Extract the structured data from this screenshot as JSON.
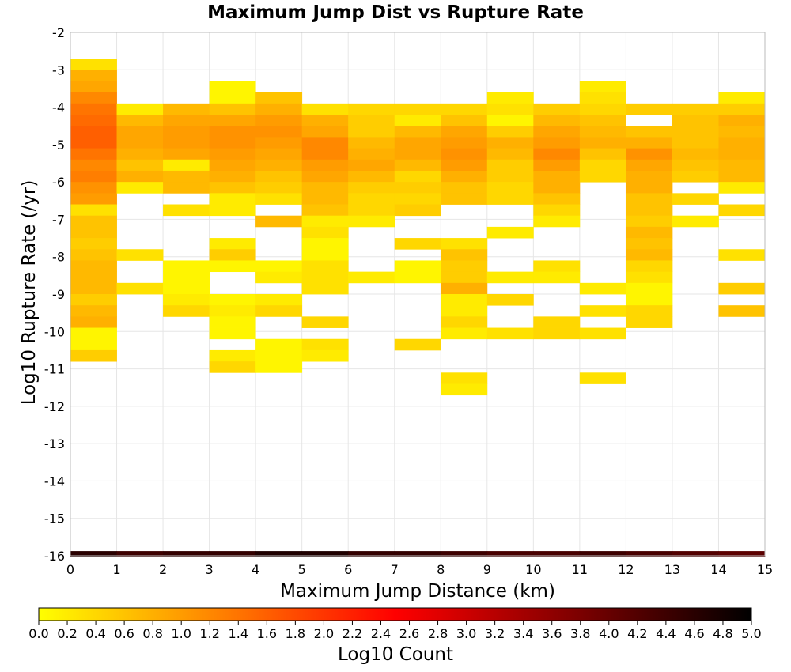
{
  "chart_data": {
    "type": "heatmap",
    "title": "Maximum Jump Dist vs Rupture Rate",
    "xlabel": "Maximum Jump Distance (km)",
    "ylabel": "Log10 Rupture Rate (/yr)",
    "xlim": [
      0,
      15
    ],
    "ylim": [
      -16,
      -2
    ],
    "x_ticks": [
      "0",
      "1",
      "2",
      "3",
      "4",
      "5",
      "6",
      "7",
      "8",
      "9",
      "10",
      "11",
      "12",
      "13",
      "14",
      "15"
    ],
    "y_ticks": [
      "-2",
      "-3",
      "-4",
      "-5",
      "-6",
      "-7",
      "-8",
      "-9",
      "-10",
      "-11",
      "-12",
      "-13",
      "-14",
      "-15",
      "-16"
    ],
    "x_bin_width": 1,
    "y_bin_height": 0.3,
    "grid": true,
    "colorbar": {
      "label": "Log10 Count",
      "min": 0,
      "max": 5,
      "ticks": [
        "0.0",
        "0.2",
        "0.4",
        "0.6",
        "0.8",
        "1.0",
        "1.2",
        "1.4",
        "1.6",
        "1.8",
        "2.0",
        "2.2",
        "2.4",
        "2.6",
        "2.8",
        "3.0",
        "3.2",
        "3.4",
        "3.6",
        "3.8",
        "4.0",
        "4.2",
        "4.4",
        "4.6",
        "4.8",
        "5.0"
      ],
      "colors": [
        "#ffff00",
        "#ff6a00",
        "#ff0000",
        "#800000",
        "#000000"
      ]
    },
    "columns": [
      {
        "x": 0.5,
        "cells": [
          [
            -2.85,
            0.3
          ],
          [
            -3.15,
            0.8
          ],
          [
            -3.45,
            0.9
          ],
          [
            -3.75,
            1.2
          ],
          [
            -4.05,
            1.4
          ],
          [
            -4.35,
            1.5
          ],
          [
            -4.65,
            1.6
          ],
          [
            -4.95,
            1.6
          ],
          [
            -5.25,
            1.4
          ],
          [
            -5.55,
            1.2
          ],
          [
            -5.85,
            1.3
          ],
          [
            -6.15,
            1.1
          ],
          [
            -6.45,
            1.0
          ],
          [
            -6.75,
            0.3
          ],
          [
            -7.05,
            0.6
          ],
          [
            -7.35,
            0.6
          ],
          [
            -7.65,
            0.5
          ],
          [
            -7.95,
            0.6
          ],
          [
            -8.25,
            0.7
          ],
          [
            -8.55,
            0.7
          ],
          [
            -8.85,
            0.7
          ],
          [
            -9.15,
            0.5
          ],
          [
            -9.45,
            0.7
          ],
          [
            -9.75,
            0.8
          ],
          [
            -10.05,
            0.1
          ],
          [
            -10.35,
            0.1
          ],
          [
            -10.65,
            0.5
          ]
        ]
      },
      {
        "x": 1.5,
        "cells": [
          [
            -4.05,
            0.2
          ],
          [
            -4.35,
            0.7
          ],
          [
            -4.65,
            0.9
          ],
          [
            -4.95,
            0.9
          ],
          [
            -5.25,
            0.8
          ],
          [
            -5.55,
            0.6
          ],
          [
            -5.85,
            0.8
          ],
          [
            -6.15,
            0.2
          ],
          [
            -7.95,
            0.3
          ],
          [
            -8.85,
            0.3
          ]
        ]
      },
      {
        "x": 2.5,
        "cells": [
          [
            -4.05,
            0.7
          ],
          [
            -4.35,
            0.9
          ],
          [
            -4.65,
            1.0
          ],
          [
            -4.95,
            1.0
          ],
          [
            -5.25,
            0.9
          ],
          [
            -5.55,
            0.2
          ],
          [
            -5.85,
            0.7
          ],
          [
            -6.15,
            0.7
          ],
          [
            -6.75,
            0.3
          ],
          [
            -8.25,
            0.1
          ],
          [
            -8.55,
            0.1
          ],
          [
            -8.85,
            0.1
          ],
          [
            -9.15,
            0.2
          ],
          [
            -9.45,
            0.4
          ]
        ]
      },
      {
        "x": 3.5,
        "cells": [
          [
            -3.45,
            0.1
          ],
          [
            -3.75,
            0.1
          ],
          [
            -4.05,
            0.6
          ],
          [
            -4.35,
            0.9
          ],
          [
            -4.65,
            1.1
          ],
          [
            -4.95,
            1.1
          ],
          [
            -5.25,
            1.0
          ],
          [
            -5.55,
            0.9
          ],
          [
            -5.85,
            0.8
          ],
          [
            -6.15,
            0.6
          ],
          [
            -6.45,
            0.2
          ],
          [
            -6.75,
            0.2
          ],
          [
            -7.65,
            0.2
          ],
          [
            -7.95,
            0.5
          ],
          [
            -8.25,
            0.1
          ],
          [
            -9.15,
            0.1
          ],
          [
            -9.45,
            0.2
          ],
          [
            -9.75,
            0.1
          ],
          [
            -10.05,
            0.1
          ],
          [
            -10.65,
            0.2
          ],
          [
            -10.95,
            0.4
          ]
        ]
      },
      {
        "x": 4.5,
        "cells": [
          [
            -3.75,
            0.6
          ],
          [
            -4.05,
            0.8
          ],
          [
            -4.35,
            1.0
          ],
          [
            -4.65,
            1.1
          ],
          [
            -4.95,
            1.0
          ],
          [
            -5.25,
            0.9
          ],
          [
            -5.55,
            0.8
          ],
          [
            -5.85,
            0.6
          ],
          [
            -6.15,
            0.5
          ],
          [
            -6.45,
            0.3
          ],
          [
            -7.05,
            0.7
          ],
          [
            -8.25,
            0.1
          ],
          [
            -8.55,
            0.2
          ],
          [
            -9.15,
            0.2
          ],
          [
            -9.45,
            0.4
          ],
          [
            -10.35,
            0.1
          ],
          [
            -10.65,
            0.1
          ],
          [
            -10.95,
            0.1
          ]
        ]
      },
      {
        "x": 5.5,
        "cells": [
          [
            -4.05,
            0.3
          ],
          [
            -4.35,
            0.8
          ],
          [
            -4.65,
            0.9
          ],
          [
            -4.95,
            1.2
          ],
          [
            -5.25,
            1.2
          ],
          [
            -5.55,
            1.0
          ],
          [
            -5.85,
            0.9
          ],
          [
            -6.15,
            0.7
          ],
          [
            -6.45,
            0.7
          ],
          [
            -6.75,
            0.6
          ],
          [
            -7.05,
            0.2
          ],
          [
            -7.35,
            0.3
          ],
          [
            -7.65,
            0.1
          ],
          [
            -7.95,
            0.1
          ],
          [
            -8.25,
            0.3
          ],
          [
            -8.55,
            0.3
          ],
          [
            -8.85,
            0.3
          ],
          [
            -9.75,
            0.4
          ],
          [
            -10.35,
            0.3
          ],
          [
            -10.65,
            0.2
          ]
        ]
      },
      {
        "x": 6.5,
        "cells": [
          [
            -4.05,
            0.4
          ],
          [
            -4.35,
            0.5
          ],
          [
            -4.65,
            0.5
          ],
          [
            -4.95,
            0.7
          ],
          [
            -5.25,
            0.8
          ],
          [
            -5.55,
            0.9
          ],
          [
            -5.85,
            0.7
          ],
          [
            -6.15,
            0.5
          ],
          [
            -6.45,
            0.4
          ],
          [
            -6.75,
            0.4
          ],
          [
            -7.05,
            0.2
          ],
          [
            -8.55,
            0.2
          ]
        ]
      },
      {
        "x": 7.5,
        "cells": [
          [
            -4.05,
            0.4
          ],
          [
            -4.35,
            0.2
          ],
          [
            -4.65,
            0.7
          ],
          [
            -4.95,
            0.9
          ],
          [
            -5.25,
            0.9
          ],
          [
            -5.55,
            0.7
          ],
          [
            -5.85,
            0.4
          ],
          [
            -6.15,
            0.5
          ],
          [
            -6.45,
            0.4
          ],
          [
            -6.75,
            0.5
          ],
          [
            -7.65,
            0.4
          ],
          [
            -8.25,
            0.1
          ],
          [
            -8.55,
            0.1
          ],
          [
            -10.35,
            0.4
          ]
        ]
      },
      {
        "x": 8.5,
        "cells": [
          [
            -4.05,
            0.4
          ],
          [
            -4.35,
            0.6
          ],
          [
            -4.65,
            0.9
          ],
          [
            -4.95,
            1.0
          ],
          [
            -5.25,
            1.1
          ],
          [
            -5.55,
            1.0
          ],
          [
            -5.85,
            0.8
          ],
          [
            -6.15,
            0.6
          ],
          [
            -6.45,
            0.6
          ],
          [
            -7.65,
            0.3
          ],
          [
            -7.95,
            0.6
          ],
          [
            -8.25,
            0.5
          ],
          [
            -8.55,
            0.5
          ],
          [
            -8.85,
            0.8
          ],
          [
            -9.15,
            0.2
          ],
          [
            -9.45,
            0.2
          ],
          [
            -9.75,
            0.4
          ],
          [
            -10.05,
            0.2
          ],
          [
            -11.25,
            0.3
          ],
          [
            -11.55,
            0.2
          ]
        ]
      },
      {
        "x": 9.5,
        "cells": [
          [
            -3.75,
            0.2
          ],
          [
            -4.05,
            0.3
          ],
          [
            -4.35,
            0.1
          ],
          [
            -4.65,
            0.5
          ],
          [
            -4.95,
            0.8
          ],
          [
            -5.25,
            0.7
          ],
          [
            -5.55,
            0.5
          ],
          [
            -5.85,
            0.5
          ],
          [
            -6.15,
            0.4
          ],
          [
            -6.45,
            0.4
          ],
          [
            -7.35,
            0.2
          ],
          [
            -8.55,
            0.2
          ],
          [
            -9.15,
            0.4
          ],
          [
            -10.05,
            0.3
          ]
        ]
      },
      {
        "x": 10.5,
        "cells": [
          [
            -4.05,
            0.5
          ],
          [
            -4.35,
            0.7
          ],
          [
            -4.65,
            0.9
          ],
          [
            -4.95,
            1.0
          ],
          [
            -5.25,
            1.2
          ],
          [
            -5.55,
            1.0
          ],
          [
            -5.85,
            0.8
          ],
          [
            -6.15,
            0.8
          ],
          [
            -6.45,
            0.6
          ],
          [
            -6.75,
            0.4
          ],
          [
            -7.05,
            0.2
          ],
          [
            -8.25,
            0.3
          ],
          [
            -8.55,
            0.2
          ],
          [
            -9.75,
            0.4
          ],
          [
            -10.05,
            0.4
          ]
        ]
      },
      {
        "x": 11.5,
        "cells": [
          [
            -3.45,
            0.2
          ],
          [
            -3.75,
            0.3
          ],
          [
            -4.05,
            0.4
          ],
          [
            -4.35,
            0.6
          ],
          [
            -4.65,
            0.7
          ],
          [
            -4.95,
            0.8
          ],
          [
            -5.25,
            0.6
          ],
          [
            -5.55,
            0.4
          ],
          [
            -5.85,
            0.4
          ],
          [
            -8.85,
            0.2
          ],
          [
            -9.45,
            0.3
          ],
          [
            -10.05,
            0.3
          ],
          [
            -11.25,
            0.3
          ]
        ]
      },
      {
        "x": 12.5,
        "cells": [
          [
            -4.05,
            0.5
          ],
          [
            -4.65,
            0.6
          ],
          [
            -4.95,
            0.8
          ],
          [
            -5.25,
            1.1
          ],
          [
            -5.55,
            0.9
          ],
          [
            -5.85,
            0.8
          ],
          [
            -6.15,
            0.8
          ],
          [
            -6.45,
            0.6
          ],
          [
            -6.75,
            0.6
          ],
          [
            -7.05,
            0.5
          ],
          [
            -7.35,
            0.7
          ],
          [
            -7.65,
            0.6
          ],
          [
            -7.95,
            0.7
          ],
          [
            -8.25,
            0.4
          ],
          [
            -8.55,
            0.3
          ],
          [
            -8.85,
            0.1
          ],
          [
            -9.15,
            0.1
          ],
          [
            -9.45,
            0.4
          ],
          [
            -9.75,
            0.4
          ]
        ]
      },
      {
        "x": 13.5,
        "cells": [
          [
            -4.05,
            0.5
          ],
          [
            -4.35,
            0.6
          ],
          [
            -4.65,
            0.6
          ],
          [
            -4.95,
            0.6
          ],
          [
            -5.25,
            0.7
          ],
          [
            -5.55,
            0.6
          ],
          [
            -5.85,
            0.5
          ],
          [
            -6.45,
            0.4
          ],
          [
            -7.05,
            0.2
          ]
        ]
      },
      {
        "x": 14.5,
        "cells": [
          [
            -3.75,
            0.2
          ],
          [
            -4.05,
            0.5
          ],
          [
            -4.35,
            0.8
          ],
          [
            -4.65,
            0.7
          ],
          [
            -4.95,
            0.8
          ],
          [
            -5.25,
            0.8
          ],
          [
            -5.55,
            0.7
          ],
          [
            -5.85,
            0.7
          ],
          [
            -6.15,
            0.2
          ],
          [
            -6.75,
            0.4
          ],
          [
            -7.95,
            0.3
          ],
          [
            -8.85,
            0.5
          ],
          [
            -9.45,
            0.6
          ]
        ]
      }
    ],
    "bottom_row": {
      "y": -15.95,
      "height": 0.15,
      "values": [
        4.6,
        4.4,
        4.5,
        4.5,
        4.7,
        4.7,
        4.5,
        4.5,
        4.4,
        4.3,
        4.3,
        4.4,
        4.3,
        4.2,
        4.1
      ]
    }
  }
}
